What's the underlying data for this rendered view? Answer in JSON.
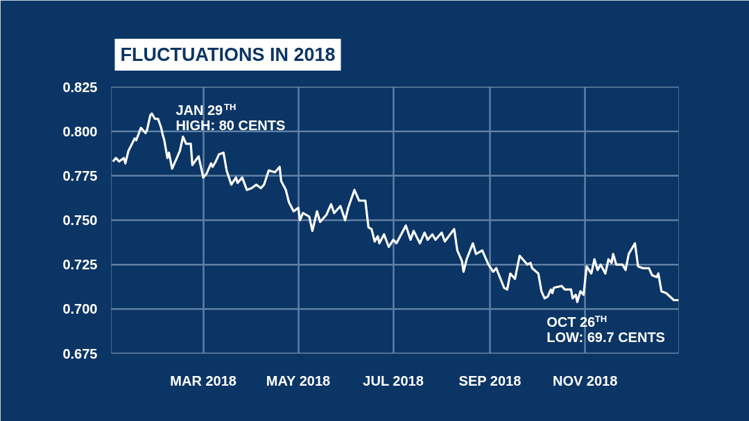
{
  "chart_data": {
    "type": "line",
    "title": "FLUCTUATIONS IN 2018",
    "x": [
      "2018-01-02",
      "2018-01-04",
      "2018-01-06",
      "2018-01-09",
      "2018-01-10",
      "2018-01-12",
      "2018-01-16",
      "2018-01-17",
      "2018-01-20",
      "2018-01-23",
      "2018-01-24",
      "2018-01-26",
      "2018-01-27",
      "2018-01-29",
      "2018-01-31",
      "2018-02-02",
      "2018-02-03",
      "2018-02-04",
      "2018-02-06",
      "2018-02-07",
      "2018-02-09",
      "2018-02-14",
      "2018-02-16",
      "2018-02-18",
      "2018-02-21",
      "2018-02-22",
      "2018-02-26",
      "2018-03-01",
      "2018-03-03",
      "2018-03-06",
      "2018-03-07",
      "2018-03-09",
      "2018-03-11",
      "2018-03-14",
      "2018-03-16",
      "2018-03-19",
      "2018-03-22",
      "2018-03-23",
      "2018-03-26",
      "2018-03-29",
      "2018-04-01",
      "2018-04-04",
      "2018-04-07",
      "2018-04-09",
      "2018-04-12",
      "2018-04-16",
      "2018-04-19",
      "2018-04-20",
      "2018-04-23",
      "2018-04-25",
      "2018-04-28",
      "2018-05-01",
      "2018-05-02",
      "2018-05-04",
      "2018-05-08",
      "2018-05-10",
      "2018-05-13",
      "2018-05-15",
      "2018-05-19",
      "2018-05-22",
      "2018-05-24",
      "2018-05-28",
      "2018-05-31",
      "2018-06-02",
      "2018-06-06",
      "2018-06-09",
      "2018-06-13",
      "2018-06-15",
      "2018-06-17",
      "2018-06-19",
      "2018-06-21",
      "2018-06-22",
      "2018-06-25",
      "2018-06-28",
      "2018-07-01",
      "2018-07-03",
      "2018-07-09",
      "2018-07-12",
      "2018-07-14",
      "2018-07-18",
      "2018-07-21",
      "2018-07-23",
      "2018-07-26",
      "2018-07-28",
      "2018-08-01",
      "2018-08-03",
      "2018-08-09",
      "2018-08-11",
      "2018-08-14",
      "2018-08-15",
      "2018-08-17",
      "2018-08-21",
      "2018-08-23",
      "2018-08-27",
      "2018-08-31",
      "2018-09-03",
      "2018-09-05",
      "2018-09-10",
      "2018-09-12",
      "2018-09-14",
      "2018-09-17",
      "2018-09-20",
      "2018-09-23",
      "2018-09-25",
      "2018-09-27",
      "2018-09-28",
      "2018-10-02",
      "2018-10-04",
      "2018-10-06",
      "2018-10-08",
      "2018-10-10",
      "2018-10-11",
      "2018-10-12",
      "2018-10-17",
      "2018-10-19",
      "2018-10-23",
      "2018-10-24",
      "2018-10-26",
      "2018-10-27",
      "2018-10-29",
      "2018-10-31",
      "2018-11-02",
      "2018-11-05",
      "2018-11-07",
      "2018-11-09",
      "2018-11-11",
      "2018-11-14",
      "2018-11-16",
      "2018-11-18",
      "2018-11-19",
      "2018-11-21",
      "2018-11-25",
      "2018-11-27",
      "2018-11-29",
      "2018-12-03",
      "2018-12-05",
      "2018-12-08",
      "2018-12-12",
      "2018-12-14",
      "2018-12-17",
      "2018-12-18",
      "2018-12-20",
      "2018-12-23",
      "2018-12-28",
      "2018-12-31"
    ],
    "series": [
      {
        "color": "#ffffff",
        "values": [
          0.783,
          0.785,
          0.783,
          0.785,
          0.782,
          0.789,
          0.796,
          0.795,
          0.802,
          0.799,
          0.801,
          0.809,
          0.81,
          0.807,
          0.807,
          0.802,
          0.798,
          0.795,
          0.785,
          0.788,
          0.779,
          0.789,
          0.797,
          0.793,
          0.793,
          0.781,
          0.786,
          0.774,
          0.776,
          0.782,
          0.78,
          0.783,
          0.787,
          0.788,
          0.778,
          0.77,
          0.774,
          0.771,
          0.774,
          0.767,
          0.768,
          0.77,
          0.768,
          0.77,
          0.778,
          0.777,
          0.78,
          0.772,
          0.767,
          0.76,
          0.755,
          0.757,
          0.75,
          0.754,
          0.752,
          0.744,
          0.755,
          0.749,
          0.753,
          0.759,
          0.754,
          0.758,
          0.75,
          0.757,
          0.767,
          0.761,
          0.761,
          0.746,
          0.745,
          0.738,
          0.741,
          0.737,
          0.742,
          0.735,
          0.739,
          0.737,
          0.747,
          0.739,
          0.744,
          0.737,
          0.743,
          0.739,
          0.742,
          0.739,
          0.743,
          0.738,
          0.745,
          0.733,
          0.727,
          0.721,
          0.728,
          0.737,
          0.731,
          0.733,
          0.725,
          0.721,
          0.723,
          0.712,
          0.711,
          0.72,
          0.717,
          0.73,
          0.727,
          0.725,
          0.726,
          0.723,
          0.72,
          0.71,
          0.706,
          0.707,
          0.711,
          0.709,
          0.712,
          0.713,
          0.711,
          0.711,
          0.706,
          0.708,
          0.704,
          0.71,
          0.708,
          0.724,
          0.72,
          0.728,
          0.722,
          0.725,
          0.72,
          0.728,
          0.726,
          0.731,
          0.725,
          0.725,
          0.722,
          0.731,
          0.737,
          0.724,
          0.723,
          0.723,
          0.719,
          0.718,
          0.72,
          0.71,
          0.709,
          0.705,
          0.705
        ]
      }
    ],
    "xlim": [
      "2018-01-01",
      "2018-12-31"
    ],
    "xticks": [
      {
        "value": "2018-03-01",
        "label": "MAR 2018"
      },
      {
        "value": "2018-05-01",
        "label": "MAY 2018"
      },
      {
        "value": "2018-07-01",
        "label": "JUL 2018"
      },
      {
        "value": "2018-09-01",
        "label": "SEP 2018"
      },
      {
        "value": "2018-11-01",
        "label": "NOV 2018"
      }
    ],
    "ylim": [
      0.675,
      0.825
    ],
    "yticks": [
      0.675,
      {
        "value": 0.7,
        "label": "0.700"
      },
      0.725,
      {
        "value": 0.75,
        "label": "0.750"
      },
      0.775,
      {
        "value": 0.8,
        "label": "0.800"
      },
      0.825
    ],
    "grid": true,
    "line_style": "solid",
    "marker": "none",
    "annotations": [
      {
        "text": "JAN 29$^{TH}$\nHIGH: 80 CENTS",
        "x": "2018-01-29",
        "y": 0.807
      },
      {
        "text": "OCT 26$^{TH}$\nLOW: 69.7 CENTS",
        "x": "2018-10-26",
        "y": 0.708
      }
    ]
  }
}
